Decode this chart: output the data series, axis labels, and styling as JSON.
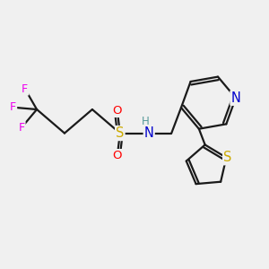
{
  "background_color": "#f0f0f0",
  "bond_color": "#1a1a1a",
  "atom_colors": {
    "F": "#ee00ee",
    "S_sulfonamide": "#ccaa00",
    "O": "#ff0000",
    "N": "#0000cc",
    "H": "#559999",
    "S_thiophene": "#ccaa00",
    "C": "#1a1a1a"
  },
  "figsize": [
    3.0,
    3.0
  ],
  "dpi": 100
}
